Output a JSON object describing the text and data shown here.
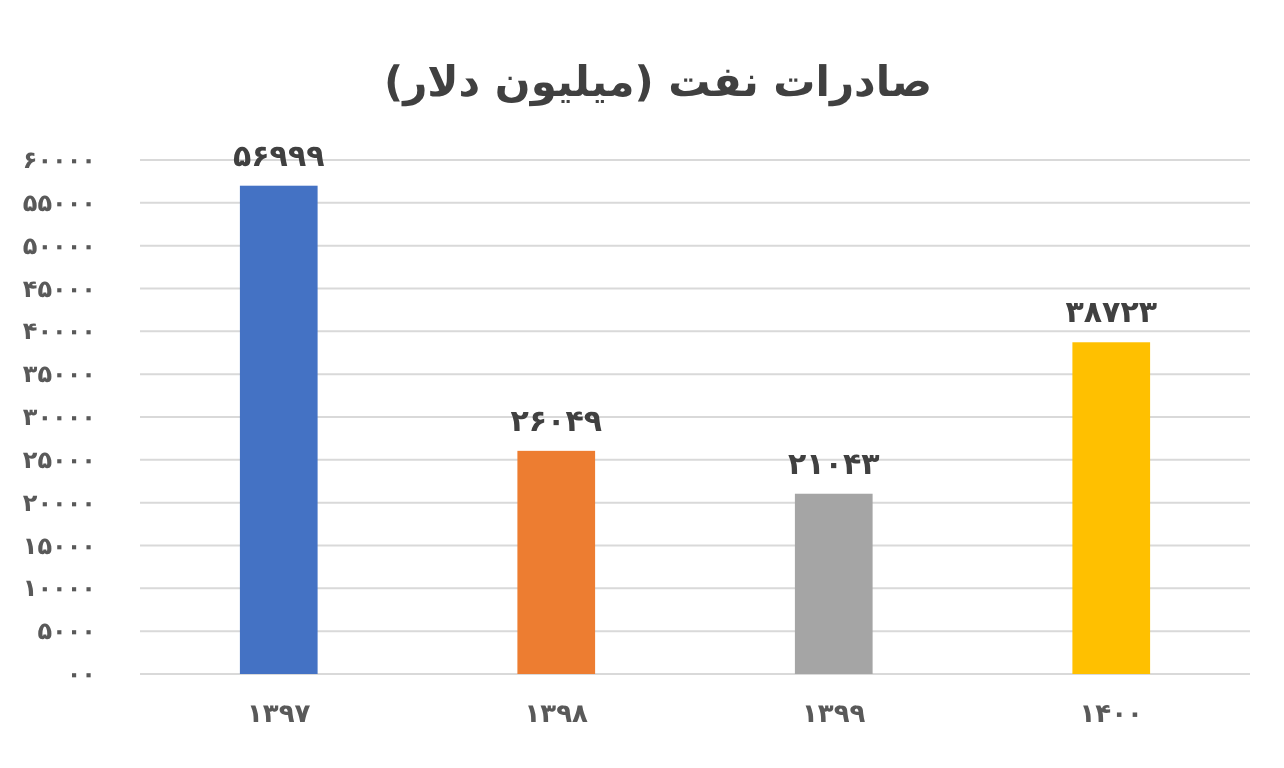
{
  "chart_data": {
    "type": "bar",
    "title": "صادرات نفت (میلیون دلار)",
    "categories": [
      "۱۳۹۷",
      "۱۳۹۸",
      "۱۳۹۹",
      "۱۴۰۰"
    ],
    "values": [
      56999,
      26049,
      21043,
      38723
    ],
    "colors": [
      "#4472c4",
      "#ed7d31",
      "#a5a5a5",
      "#ffc000"
    ],
    "value_labels": [
      "۵۶۹۹۹",
      "۲۶۰۴۹",
      "۲۱۰۴۳",
      "۳۸۷۲۳"
    ],
    "ylim": [
      0,
      60000
    ],
    "yticks": [
      {
        "value": 0,
        "label": "۰۰"
      },
      {
        "value": 5000,
        "label": "۵۰۰۰"
      },
      {
        "value": 10000,
        "label": "۱۰۰۰۰"
      },
      {
        "value": 15000,
        "label": "۱۵۰۰۰"
      },
      {
        "value": 20000,
        "label": "۲۰۰۰۰"
      },
      {
        "value": 25000,
        "label": "۲۵۰۰۰"
      },
      {
        "value": 30000,
        "label": "۳۰۰۰۰"
      },
      {
        "value": 35000,
        "label": "۳۵۰۰۰"
      },
      {
        "value": 40000,
        "label": "۴۰۰۰۰"
      },
      {
        "value": 45000,
        "label": "۴۵۰۰۰"
      },
      {
        "value": 50000,
        "label": "۵۰۰۰۰"
      },
      {
        "value": 55000,
        "label": "۵۵۰۰۰"
      },
      {
        "value": 60000,
        "label": "۶۰۰۰۰"
      }
    ],
    "grid": "y"
  }
}
